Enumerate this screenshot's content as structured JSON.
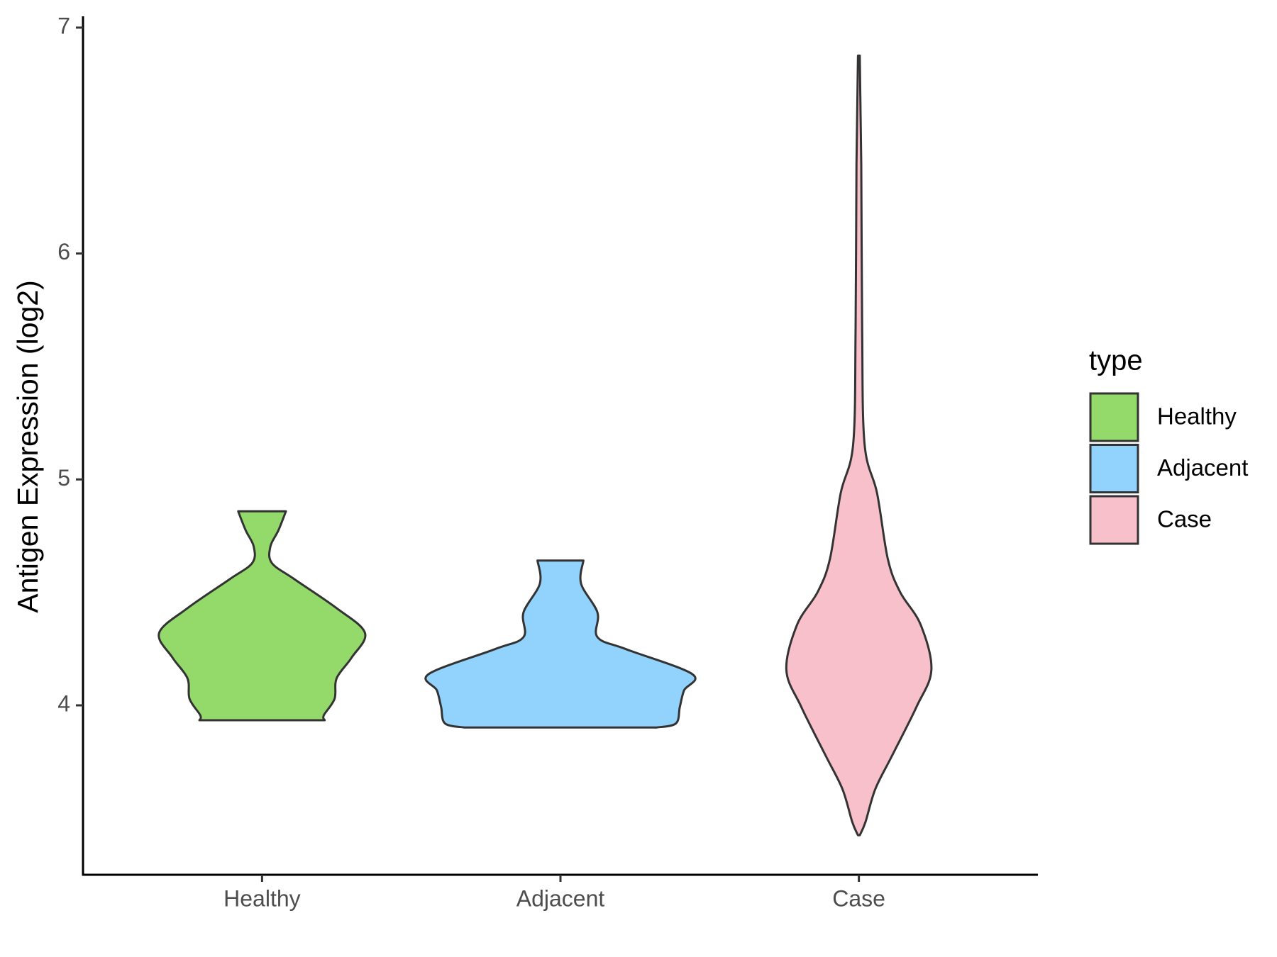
{
  "chart_data": {
    "type": "violin",
    "y_label": "Antigen Expression (log2)",
    "categories": [
      "Healthy",
      "Adjacent",
      "Case"
    ],
    "ylim": [
      3.25,
      7.05
    ],
    "yticks": [
      4,
      5,
      6,
      7
    ],
    "legend_title": "type",
    "legend": "right",
    "series": [
      {
        "name": "Healthy",
        "color": "#93DA6A",
        "y": [
          4.859,
          4.775,
          4.703,
          4.63,
          4.557,
          4.43,
          4.32,
          4.211,
          4.12,
          4.029,
          3.956,
          3.934
        ],
        "width": [
          0.08,
          0.055,
          0.028,
          0.033,
          0.11,
          0.25,
          0.345,
          0.3,
          0.25,
          0.243,
          0.207,
          0.21
        ]
      },
      {
        "name": "Adjacent",
        "color": "#92D3FE",
        "y": [
          4.641,
          4.539,
          4.411,
          4.302,
          4.248,
          4.138,
          4.066,
          3.993,
          3.92,
          3.902
        ],
        "width": [
          0.077,
          0.069,
          0.124,
          0.124,
          0.221,
          0.442,
          0.414,
          0.4,
          0.387,
          0.323
        ]
      },
      {
        "name": "Case",
        "color": "#F7C0CB",
        "y": [
          6.876,
          6.395,
          5.667,
          5.158,
          4.939,
          4.648,
          4.502,
          4.357,
          4.157,
          3.993,
          3.774,
          3.629,
          3.483,
          3.425
        ],
        "width": [
          0.003,
          0.008,
          0.011,
          0.019,
          0.061,
          0.097,
          0.138,
          0.207,
          0.243,
          0.193,
          0.11,
          0.055,
          0.022,
          0.003
        ]
      }
    ]
  }
}
